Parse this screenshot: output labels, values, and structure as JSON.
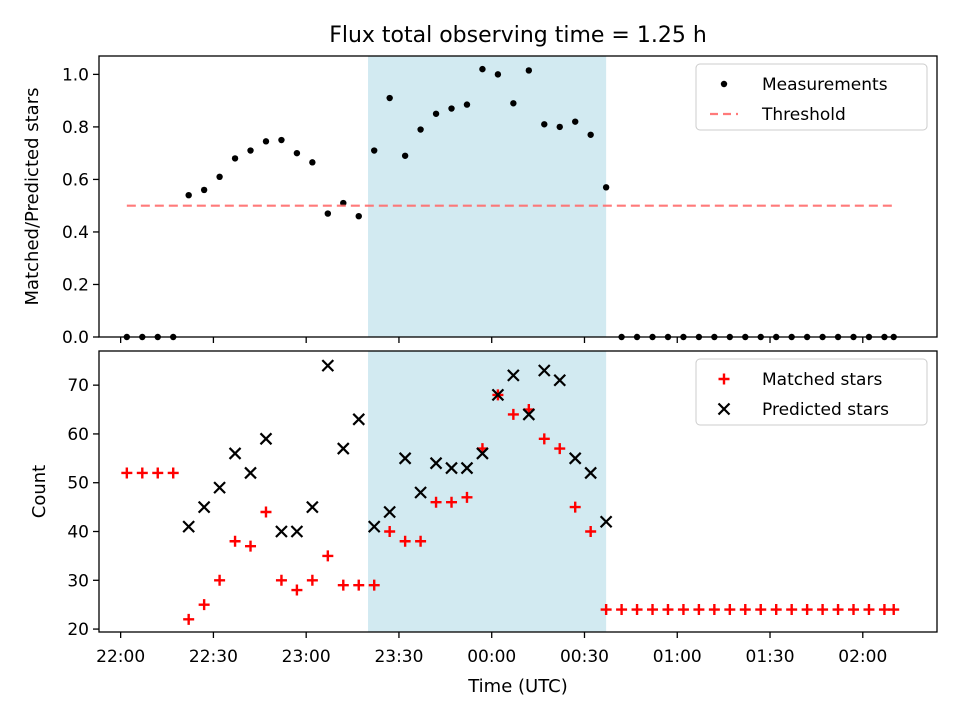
{
  "chart_data": [
    {
      "type": "scatter",
      "title": "Flux total observing time = 1.25 h",
      "xlabel": "",
      "ylabel": "Matched/Predicted stars",
      "xlim": [
        "21:53",
        "02:24"
      ],
      "ylim": [
        0,
        1.07
      ],
      "yticks": [
        "0.0",
        "0.2",
        "0.4",
        "0.6",
        "0.8",
        "1.0"
      ],
      "grid": false,
      "legend_position": "top-right",
      "shaded_region": {
        "x_start": "23:20",
        "x_end": "00:37",
        "color": "#add8e6"
      },
      "series": [
        {
          "name": "Measurements",
          "marker": "dot",
          "color": "#000000",
          "x": [
            "22:02",
            "22:07",
            "22:12",
            "22:17",
            "22:22",
            "22:27",
            "22:32",
            "22:37",
            "22:42",
            "22:47",
            "22:52",
            "22:57",
            "23:02",
            "23:07",
            "23:12",
            "23:17",
            "23:22",
            "23:27",
            "23:32",
            "23:37",
            "23:42",
            "23:47",
            "23:52",
            "23:57",
            "00:02",
            "00:07",
            "00:12",
            "00:17",
            "00:22",
            "00:27",
            "00:32",
            "00:37",
            "00:42",
            "00:47",
            "00:52",
            "00:57",
            "01:02",
            "01:07",
            "01:12",
            "01:17",
            "01:22",
            "01:27",
            "01:32",
            "01:37",
            "01:42",
            "01:47",
            "01:52",
            "01:57",
            "02:02",
            "02:07",
            "02:10"
          ],
          "y": [
            0.0,
            0.0,
            0.0,
            0.0,
            0.54,
            0.56,
            0.61,
            0.68,
            0.71,
            0.745,
            0.75,
            0.7,
            0.665,
            0.47,
            0.51,
            0.46,
            0.71,
            0.91,
            0.69,
            0.79,
            0.85,
            0.87,
            0.885,
            1.02,
            1.0,
            0.89,
            1.015,
            0.81,
            0.8,
            0.82,
            0.77,
            0.57,
            0.0,
            0.0,
            0.0,
            0.0,
            0.0,
            0.0,
            0.0,
            0.0,
            0.0,
            0.0,
            0.0,
            0.0,
            0.0,
            0.0,
            0.0,
            0.0,
            0.0,
            0.0,
            0.0
          ]
        },
        {
          "name": "Threshold",
          "style": "dashed",
          "color": "#ff6b6b",
          "x": [
            "22:02",
            "02:10"
          ],
          "y": [
            0.5,
            0.5
          ]
        }
      ]
    },
    {
      "type": "scatter",
      "title": "",
      "xlabel": "Time (UTC)",
      "ylabel": "Count",
      "xlim": [
        "21:53",
        "02:24"
      ],
      "ylim": [
        19.4,
        77
      ],
      "yticks": [
        "20",
        "30",
        "40",
        "50",
        "60",
        "70"
      ],
      "xticks": [
        "22:00",
        "22:30",
        "23:00",
        "23:30",
        "00:00",
        "00:30",
        "01:00",
        "01:30",
        "02:00"
      ],
      "grid": false,
      "legend_position": "top-right",
      "shaded_region": {
        "x_start": "23:20",
        "x_end": "00:37",
        "color": "#add8e6"
      },
      "series": [
        {
          "name": "Matched stars",
          "marker": "plus",
          "color": "#ff0000",
          "x": [
            "22:02",
            "22:07",
            "22:12",
            "22:17",
            "22:22",
            "22:27",
            "22:32",
            "22:37",
            "22:42",
            "22:47",
            "22:52",
            "22:57",
            "23:02",
            "23:07",
            "23:12",
            "23:17",
            "23:22",
            "23:27",
            "23:32",
            "23:37",
            "23:42",
            "23:47",
            "23:52",
            "23:57",
            "00:02",
            "00:07",
            "00:12",
            "00:17",
            "00:22",
            "00:27",
            "00:32",
            "00:37",
            "00:42",
            "00:47",
            "00:52",
            "00:57",
            "01:02",
            "01:07",
            "01:12",
            "01:17",
            "01:22",
            "01:27",
            "01:32",
            "01:37",
            "01:42",
            "01:47",
            "01:52",
            "01:57",
            "02:02",
            "02:07",
            "02:10"
          ],
          "y": [
            52,
            52,
            52,
            52,
            22,
            25,
            30,
            38,
            37,
            44,
            30,
            28,
            30,
            35,
            29,
            29,
            29,
            40,
            38,
            38,
            46,
            46,
            47,
            57,
            68,
            64,
            65,
            59,
            57,
            45,
            40,
            24,
            24,
            24,
            24,
            24,
            24,
            24,
            24,
            24,
            24,
            24,
            24,
            24,
            24,
            24,
            24,
            24,
            24,
            24,
            24
          ]
        },
        {
          "name": "Predicted stars",
          "marker": "x",
          "color": "#000000",
          "x": [
            "22:22",
            "22:27",
            "22:32",
            "22:37",
            "22:42",
            "22:47",
            "22:52",
            "22:57",
            "23:02",
            "23:07",
            "23:12",
            "23:17",
            "23:22",
            "23:27",
            "23:32",
            "23:37",
            "23:42",
            "23:47",
            "23:52",
            "23:57",
            "00:02",
            "00:07",
            "00:12",
            "00:17",
            "00:22",
            "00:27",
            "00:32",
            "00:37"
          ],
          "y": [
            41,
            45,
            49,
            56,
            52,
            59,
            40,
            40,
            45,
            74,
            57,
            63,
            41,
            44,
            55,
            48,
            54,
            53,
            53,
            56,
            68,
            72,
            64,
            73,
            71,
            55,
            52,
            42
          ]
        }
      ]
    }
  ]
}
